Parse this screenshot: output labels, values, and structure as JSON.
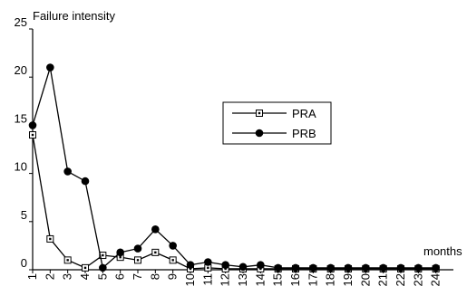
{
  "chart_data": {
    "type": "line",
    "title": "",
    "ylabel": "Failure intensity",
    "xlabel": "months",
    "ylim": [
      0,
      25
    ],
    "yticks": [
      0,
      5,
      10,
      15,
      20,
      25
    ],
    "categories": [
      "1",
      "2",
      "3",
      "4",
      "5",
      "6",
      "7",
      "8",
      "9",
      "10",
      "11",
      "12",
      "13",
      "14",
      "15",
      "16",
      "17",
      "18",
      "19",
      "20",
      "21",
      "22",
      "23",
      "24"
    ],
    "grid": false,
    "legend_position": "center-right",
    "series": [
      {
        "name": "PRA",
        "marker": "square-dotted",
        "color": "#000000",
        "values": [
          14,
          3.2,
          1,
          0.2,
          1.5,
          1.3,
          1,
          1.8,
          1,
          0.1,
          0.2,
          0.1,
          0.1,
          0.1,
          0.1,
          0.1,
          0.1,
          0.1,
          0.1,
          0.1,
          0.1,
          0.1,
          0.1,
          0.1
        ]
      },
      {
        "name": "PRB",
        "marker": "circle-filled",
        "color": "#000000",
        "values": [
          15,
          21,
          10.2,
          9.2,
          0.2,
          1.8,
          2.2,
          4.2,
          2.5,
          0.5,
          0.8,
          0.5,
          0.3,
          0.5,
          0.2,
          0.2,
          0.2,
          0.2,
          0.2,
          0.2,
          0.2,
          0.2,
          0.2,
          0.2
        ]
      }
    ]
  }
}
